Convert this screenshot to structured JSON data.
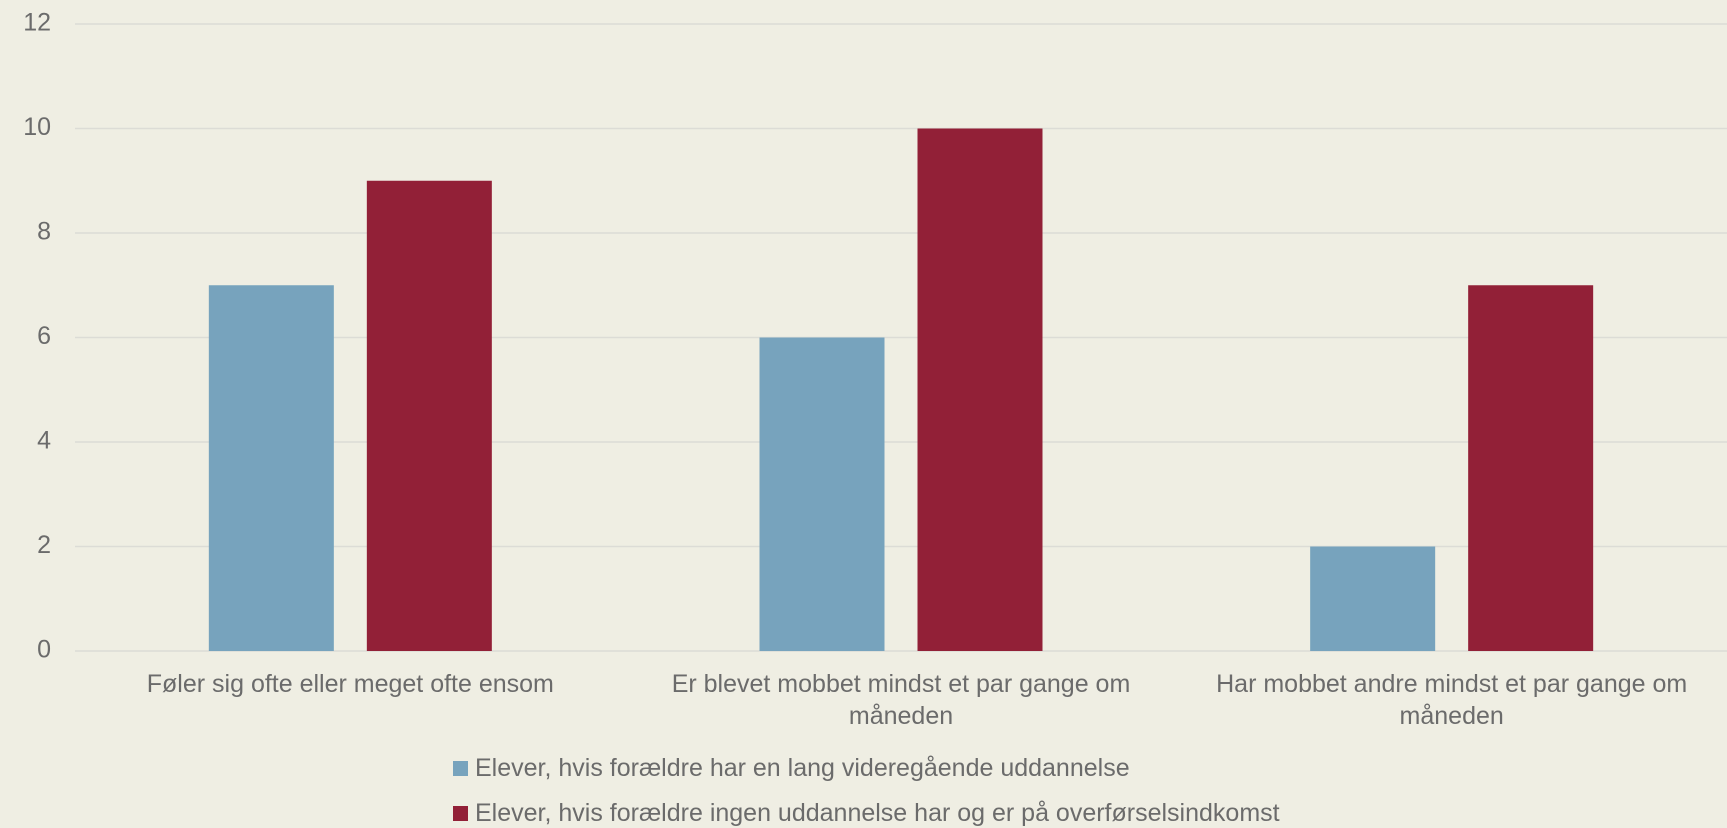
{
  "chart_data": {
    "type": "bar",
    "categories": [
      "Føler sig ofte eller meget ofte ensom",
      "Er blevet mobbet mindst et par gange om måneden",
      "Har mobbet andre mindst et par gange om måneden"
    ],
    "series": [
      {
        "name": "Elever, hvis forældre har en lang videregående uddannelse",
        "color": "#77a3bd",
        "values": [
          7,
          6,
          2
        ]
      },
      {
        "name": "Elever, hvis forældre ingen uddannelse har og er på overførselsindkomst",
        "color": "#922037",
        "values": [
          9,
          10,
          7
        ]
      }
    ],
    "ylim": [
      0,
      12
    ],
    "yticks": [
      0,
      2,
      4,
      6,
      8,
      10,
      12
    ],
    "grid": true,
    "legend": "bottom"
  }
}
